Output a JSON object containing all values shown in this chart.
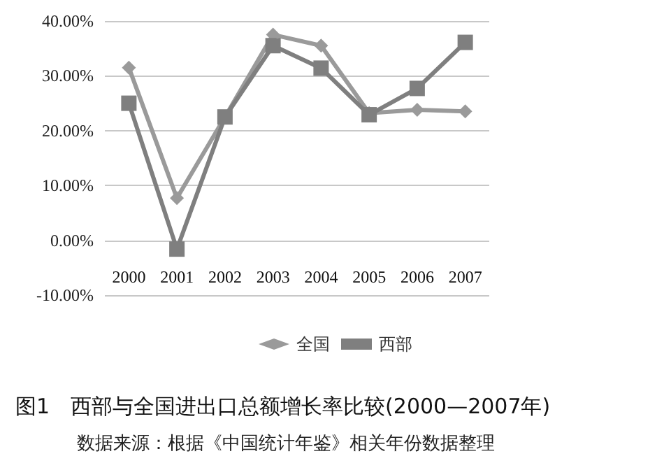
{
  "chart_data": {
    "type": "line",
    "title": "图1　西部与全国进出口总额增长率比较(2000—2007年)",
    "annotations": [
      "数据来源：根据《中国统计年鉴》相关年份数据整理"
    ],
    "categories": [
      "2000",
      "2001",
      "2002",
      "2003",
      "2004",
      "2005",
      "2006",
      "2007"
    ],
    "series": [
      {
        "name": "全国",
        "color": "#9a9a9a",
        "marker": "diamond",
        "values": [
          31.5,
          7.7,
          22.5,
          37.5,
          35.5,
          23.2,
          23.8,
          23.5
        ]
      },
      {
        "name": "西部",
        "color": "#7f7f7f",
        "marker": "square",
        "values": [
          25,
          -1.6,
          22.5,
          35.5,
          31.4,
          22.9,
          27.7,
          36.1
        ]
      }
    ],
    "ylim": [
      -10,
      40
    ],
    "yticks": [
      {
        "value": -10,
        "label": "-10.00%"
      },
      {
        "value": 0,
        "label": "0.00%"
      },
      {
        "value": 10,
        "label": "10.00%"
      },
      {
        "value": 20,
        "label": "20.00%"
      },
      {
        "value": 30,
        "label": "30.00%"
      },
      {
        "value": 40,
        "label": "40.00%"
      }
    ],
    "grid": "y",
    "legend": "bottom",
    "line_style": "solid"
  }
}
